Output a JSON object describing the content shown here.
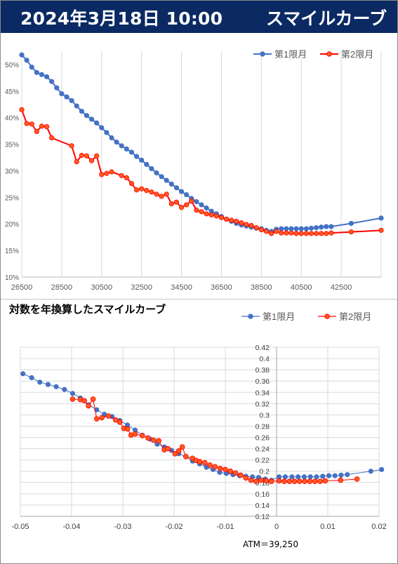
{
  "header": {
    "timestamp": "2024年3月18日 10:00",
    "title": "スマイルカーブ"
  },
  "colors": {
    "header_bg": "#0b2a63",
    "series1": "#4472c4",
    "series2": "#ff0000",
    "series2_marker": "#ff5a1f"
  },
  "chart_data": [
    {
      "type": "line",
      "title": "",
      "xlabel": "",
      "ylabel": "",
      "xlim": [
        26500,
        44500
      ],
      "ylim": [
        0.1,
        0.525
      ],
      "x_ticks": [
        "26500",
        "28500",
        "30500",
        "32500",
        "34500",
        "36500",
        "38500",
        "40500",
        "42500"
      ],
      "y_ticks": [
        "10%",
        "15%",
        "20%",
        "25%",
        "30%",
        "35%",
        "40%",
        "45%",
        "50%"
      ],
      "grid": "vertical",
      "legend_position": "top-right",
      "series": [
        {
          "name": "第1限月",
          "points": [
            [
              26500,
              0.518
            ],
            [
              26750,
              0.508
            ],
            [
              27000,
              0.495
            ],
            [
              27250,
              0.485
            ],
            [
              27500,
              0.481
            ],
            [
              27750,
              0.477
            ],
            [
              28000,
              0.468
            ],
            [
              28250,
              0.456
            ],
            [
              28500,
              0.445
            ],
            [
              28750,
              0.439
            ],
            [
              29000,
              0.432
            ],
            [
              29250,
              0.422
            ],
            [
              29500,
              0.412
            ],
            [
              29750,
              0.404
            ],
            [
              30000,
              0.397
            ],
            [
              30250,
              0.39
            ],
            [
              30500,
              0.381
            ],
            [
              30750,
              0.372
            ],
            [
              31000,
              0.362
            ],
            [
              31250,
              0.354
            ],
            [
              31500,
              0.347
            ],
            [
              31750,
              0.341
            ],
            [
              32000,
              0.335
            ],
            [
              32250,
              0.327
            ],
            [
              32500,
              0.32
            ],
            [
              32750,
              0.312
            ],
            [
              33000,
              0.304
            ],
            [
              33250,
              0.296
            ],
            [
              33500,
              0.289
            ],
            [
              33750,
              0.282
            ],
            [
              34000,
              0.275
            ],
            [
              34250,
              0.268
            ],
            [
              34500,
              0.261
            ],
            [
              34750,
              0.255
            ],
            [
              35000,
              0.248
            ],
            [
              35250,
              0.242
            ],
            [
              35500,
              0.236
            ],
            [
              35750,
              0.23
            ],
            [
              36000,
              0.224
            ],
            [
              36250,
              0.219
            ],
            [
              36500,
              0.214
            ],
            [
              36750,
              0.209
            ],
            [
              37000,
              0.205
            ],
            [
              37250,
              0.201
            ],
            [
              37500,
              0.198
            ],
            [
              37750,
              0.196
            ],
            [
              38000,
              0.194
            ],
            [
              38250,
              0.192
            ],
            [
              38500,
              0.191
            ],
            [
              38750,
              0.188
            ],
            [
              39000,
              0.186
            ],
            [
              39250,
              0.19
            ],
            [
              39500,
              0.191
            ],
            [
              39750,
              0.191
            ],
            [
              40000,
              0.191
            ],
            [
              40250,
              0.191
            ],
            [
              40500,
              0.191
            ],
            [
              40750,
              0.191
            ],
            [
              41000,
              0.192
            ],
            [
              41250,
              0.193
            ],
            [
              41500,
              0.194
            ],
            [
              41750,
              0.195
            ],
            [
              42000,
              0.195
            ],
            [
              43000,
              0.201
            ],
            [
              44500,
              0.211
            ]
          ]
        },
        {
          "name": "第2限月",
          "points": [
            [
              26500,
              0.415
            ],
            [
              26750,
              0.389
            ],
            [
              27000,
              0.388
            ],
            [
              27250,
              0.374
            ],
            [
              27500,
              0.384
            ],
            [
              27750,
              0.383
            ],
            [
              28000,
              0.362
            ],
            [
              29000,
              0.347
            ],
            [
              29250,
              0.317
            ],
            [
              29500,
              0.329
            ],
            [
              29750,
              0.328
            ],
            [
              30000,
              0.319
            ],
            [
              30250,
              0.328
            ],
            [
              30500,
              0.293
            ],
            [
              30750,
              0.295
            ],
            [
              31000,
              0.298
            ],
            [
              31500,
              0.291
            ],
            [
              31750,
              0.287
            ],
            [
              32000,
              0.276
            ],
            [
              32250,
              0.264
            ],
            [
              32500,
              0.266
            ],
            [
              32750,
              0.263
            ],
            [
              33000,
              0.26
            ],
            [
              33250,
              0.256
            ],
            [
              33500,
              0.252
            ],
            [
              33750,
              0.256
            ],
            [
              34000,
              0.238
            ],
            [
              34250,
              0.241
            ],
            [
              34500,
              0.231
            ],
            [
              34750,
              0.236
            ],
            [
              35000,
              0.243
            ],
            [
              35250,
              0.226
            ],
            [
              35500,
              0.223
            ],
            [
              35750,
              0.219
            ],
            [
              36000,
              0.217
            ],
            [
              36250,
              0.215
            ],
            [
              36500,
              0.212
            ],
            [
              36750,
              0.209
            ],
            [
              37000,
              0.207
            ],
            [
              37250,
              0.205
            ],
            [
              37500,
              0.202
            ],
            [
              37750,
              0.199
            ],
            [
              38000,
              0.197
            ],
            [
              38250,
              0.193
            ],
            [
              38500,
              0.189
            ],
            [
              38750,
              0.186
            ],
            [
              39000,
              0.182
            ],
            [
              39250,
              0.186
            ],
            [
              39500,
              0.183
            ],
            [
              39750,
              0.183
            ],
            [
              40000,
              0.183
            ],
            [
              40250,
              0.182
            ],
            [
              40500,
              0.182
            ],
            [
              40750,
              0.182
            ],
            [
              41000,
              0.182
            ],
            [
              41250,
              0.182
            ],
            [
              41500,
              0.182
            ],
            [
              41750,
              0.182
            ],
            [
              42000,
              0.183
            ],
            [
              43000,
              0.185
            ],
            [
              44500,
              0.188
            ]
          ]
        }
      ]
    },
    {
      "type": "line",
      "title": "対数を年換算したスマイルカーブ",
      "xlabel": "",
      "ylabel": "",
      "xlim": [
        -0.05,
        0.02
      ],
      "ylim": [
        0.12,
        0.42
      ],
      "x_ticks": [
        "-0.05",
        "-0.04",
        "-0.03",
        "-0.02",
        "-0.01",
        "0",
        "0.01",
        "0.02"
      ],
      "y_ticks": [
        "0.12",
        "0.14",
        "0.16",
        "0.18",
        "0.2",
        "0.22",
        "0.24",
        "0.26",
        "0.28",
        "0.3",
        "0.32",
        "0.34",
        "0.36",
        "0.38",
        "0.4",
        "0.42"
      ],
      "grid": "both",
      "legend_position": "top-right",
      "annotation": "ATM＝39,250",
      "series": [
        {
          "name": "第1限月",
          "points": [
            [
              -0.0495,
              0.373
            ],
            [
              -0.0478,
              0.366
            ],
            [
              -0.0462,
              0.358
            ],
            [
              -0.0446,
              0.354
            ],
            [
              -0.043,
              0.35
            ],
            [
              -0.0414,
              0.345
            ],
            [
              -0.0398,
              0.338
            ],
            [
              -0.0383,
              0.33
            ],
            [
              -0.0367,
              0.318
            ],
            [
              -0.0351,
              0.309
            ],
            [
              -0.0336,
              0.301
            ],
            [
              -0.0321,
              0.297
            ],
            [
              -0.0306,
              0.29
            ],
            [
              -0.0291,
              0.282
            ],
            [
              -0.0276,
              0.273
            ],
            [
              -0.0262,
              0.264
            ],
            [
              -0.0247,
              0.257
            ],
            [
              -0.0233,
              0.248
            ],
            [
              -0.0219,
              0.243
            ],
            [
              -0.0205,
              0.237
            ],
            [
              -0.0191,
              0.231
            ],
            [
              -0.0177,
              0.226
            ],
            [
              -0.0164,
              0.218
            ],
            [
              -0.015,
              0.213
            ],
            [
              -0.0137,
              0.207
            ],
            [
              -0.0124,
              0.203
            ],
            [
              -0.0111,
              0.198
            ],
            [
              -0.0098,
              0.196
            ],
            [
              -0.0085,
              0.194
            ],
            [
              -0.0072,
              0.192
            ],
            [
              -0.006,
              0.191
            ],
            [
              -0.0047,
              0.19
            ],
            [
              -0.0035,
              0.189
            ],
            [
              -0.0022,
              0.186
            ],
            [
              -0.001,
              0.184
            ],
            [
              0.0005,
              0.19
            ],
            [
              0.0017,
              0.19
            ],
            [
              0.003,
              0.19
            ],
            [
              0.0042,
              0.19
            ],
            [
              0.0054,
              0.19
            ],
            [
              0.0066,
              0.19
            ],
            [
              0.0078,
              0.19
            ],
            [
              0.009,
              0.191
            ],
            [
              0.0102,
              0.192
            ],
            [
              0.0114,
              0.192
            ],
            [
              0.0126,
              0.193
            ],
            [
              0.0138,
              0.194
            ],
            [
              0.0184,
              0.2
            ],
            [
              0.0205,
              0.203
            ]
          ]
        },
        {
          "name": "第2限月",
          "points": [
            [
              -0.0398,
              0.328
            ],
            [
              -0.0383,
              0.327
            ],
            [
              -0.0375,
              0.325
            ],
            [
              -0.0367,
              0.316
            ],
            [
              -0.0358,
              0.328
            ],
            [
              -0.0351,
              0.293
            ],
            [
              -0.0341,
              0.295
            ],
            [
              -0.0328,
              0.298
            ],
            [
              -0.0314,
              0.291
            ],
            [
              -0.0306,
              0.287
            ],
            [
              -0.0298,
              0.276
            ],
            [
              -0.0291,
              0.275
            ],
            [
              -0.0284,
              0.264
            ],
            [
              -0.0276,
              0.266
            ],
            [
              -0.0262,
              0.263
            ],
            [
              -0.0251,
              0.259
            ],
            [
              -0.024,
              0.255
            ],
            [
              -0.023,
              0.254
            ],
            [
              -0.0219,
              0.238
            ],
            [
              -0.0212,
              0.24
            ],
            [
              -0.0198,
              0.231
            ],
            [
              -0.0191,
              0.236
            ],
            [
              -0.0184,
              0.243
            ],
            [
              -0.0177,
              0.226
            ],
            [
              -0.0164,
              0.223
            ],
            [
              -0.0157,
              0.219
            ],
            [
              -0.015,
              0.217
            ],
            [
              -0.014,
              0.215
            ],
            [
              -0.013,
              0.211
            ],
            [
              -0.012,
              0.208
            ],
            [
              -0.011,
              0.205
            ],
            [
              -0.01,
              0.203
            ],
            [
              -0.009,
              0.2
            ],
            [
              -0.008,
              0.197
            ],
            [
              -0.007,
              0.193
            ],
            [
              -0.006,
              0.188
            ],
            [
              -0.005,
              0.184
            ],
            [
              -0.004,
              0.182
            ],
            [
              -0.003,
              0.184
            ],
            [
              -0.002,
              0.183
            ],
            [
              -0.001,
              0.182
            ],
            [
              0.0005,
              0.183
            ],
            [
              0.0015,
              0.182
            ],
            [
              0.0025,
              0.182
            ],
            [
              0.0035,
              0.182
            ],
            [
              0.0045,
              0.182
            ],
            [
              0.0055,
              0.182
            ],
            [
              0.0065,
              0.182
            ],
            [
              0.0075,
              0.182
            ],
            [
              0.0085,
              0.182
            ],
            [
              0.0095,
              0.183
            ],
            [
              0.0125,
              0.184
            ],
            [
              0.0157,
              0.186
            ]
          ]
        }
      ]
    }
  ]
}
